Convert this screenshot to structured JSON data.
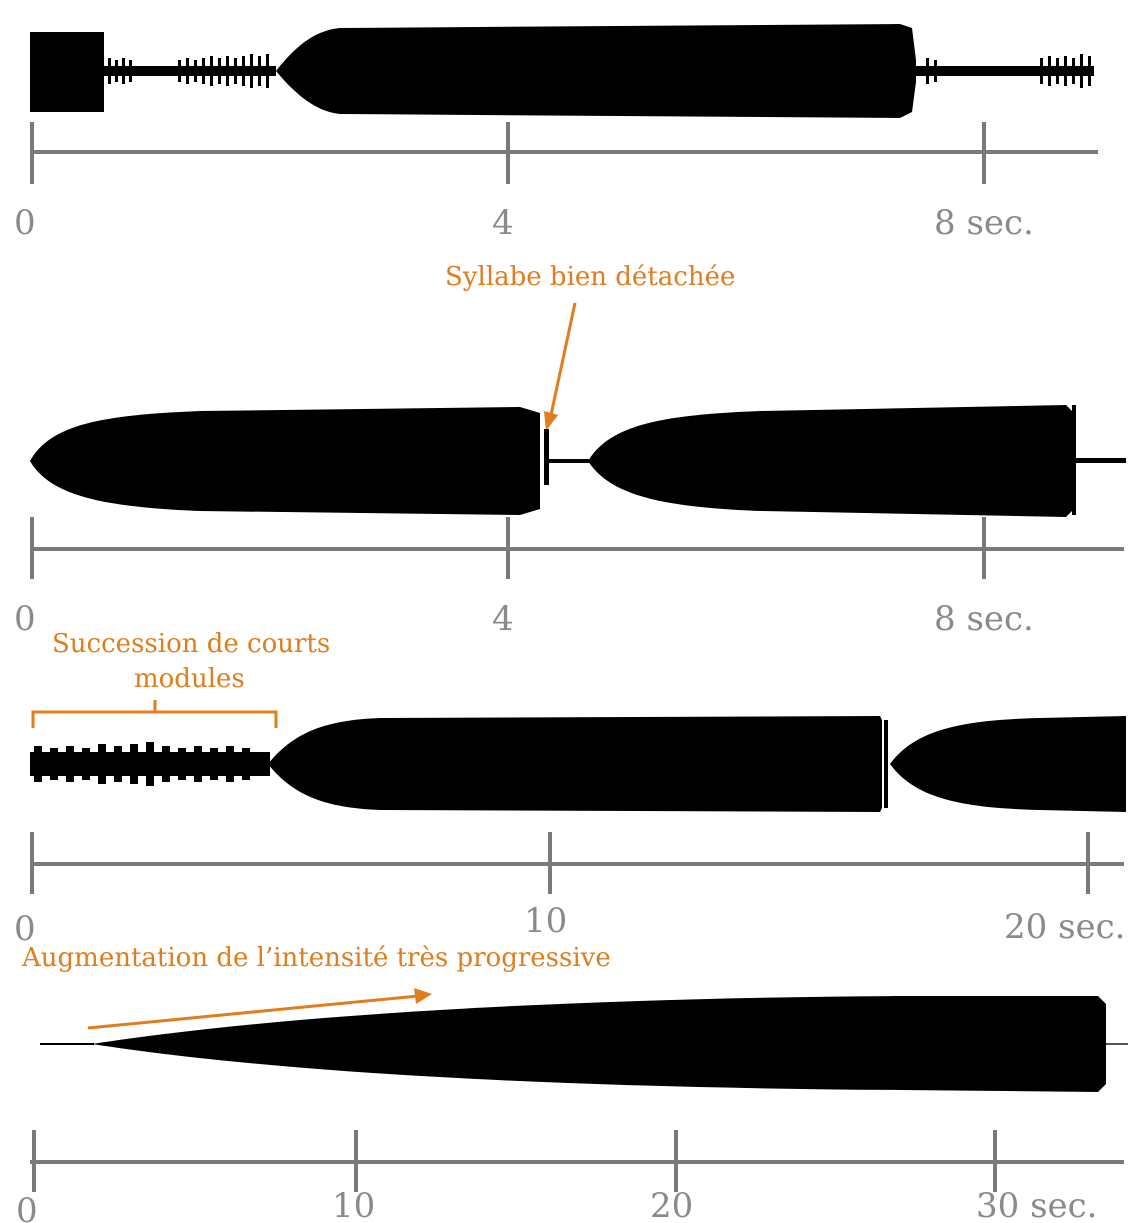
{
  "colors": {
    "waveform": "#000000",
    "axis": "#7a7a7a",
    "annotation": "#e07d1d"
  },
  "panels": [
    {
      "id": "p1",
      "ticks": [
        "0",
        "4",
        "8 sec."
      ],
      "annotations": []
    },
    {
      "id": "p2",
      "ticks": [
        "0",
        "4",
        "8 sec."
      ],
      "annotations": [
        "Syllabe bien détachée"
      ]
    },
    {
      "id": "p3",
      "ticks": [
        "0",
        "10",
        "20 sec."
      ],
      "annotations": [
        "Succession de courts",
        "modules"
      ]
    },
    {
      "id": "p4",
      "ticks": [
        "0",
        "10",
        "20",
        "30 sec."
      ],
      "annotations": [
        "Augmentation de l’intensité très progressive"
      ]
    }
  ]
}
